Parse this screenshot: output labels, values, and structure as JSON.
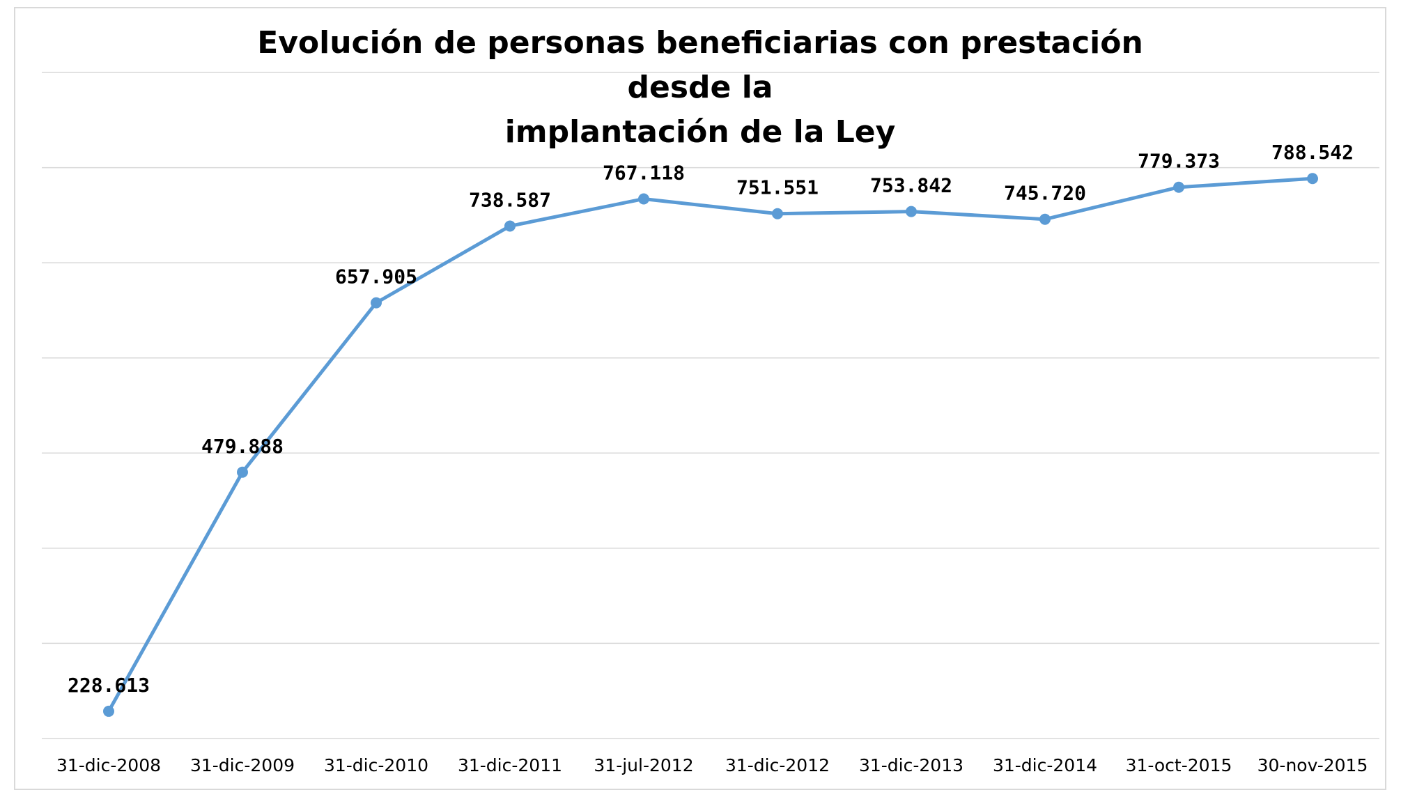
{
  "chart_data": {
    "type": "line",
    "title_lines": [
      "Evolución de personas beneficiarias con prestación desde la",
      "implantación de la Ley"
    ],
    "categories": [
      "31-dic-2008",
      "31-dic-2009",
      "31-dic-2010",
      "31-dic-2011",
      "31-jul-2012",
      "31-dic-2012",
      "31-dic-2013",
      "31-dic-2014",
      "31-oct-2015",
      "30-nov-2015"
    ],
    "values": [
      228613,
      479888,
      657905,
      738587,
      767118,
      751551,
      753842,
      745720,
      779373,
      788542
    ],
    "data_labels": [
      "228.613",
      "479.888",
      "657.905",
      "738.587",
      "767.118",
      "751.551",
      "753.842",
      "745.720",
      "779.373",
      "788.542"
    ],
    "ylim": [
      200000,
      900000
    ],
    "grid": true,
    "legend": "none",
    "line_color": "#5b9bd5"
  }
}
